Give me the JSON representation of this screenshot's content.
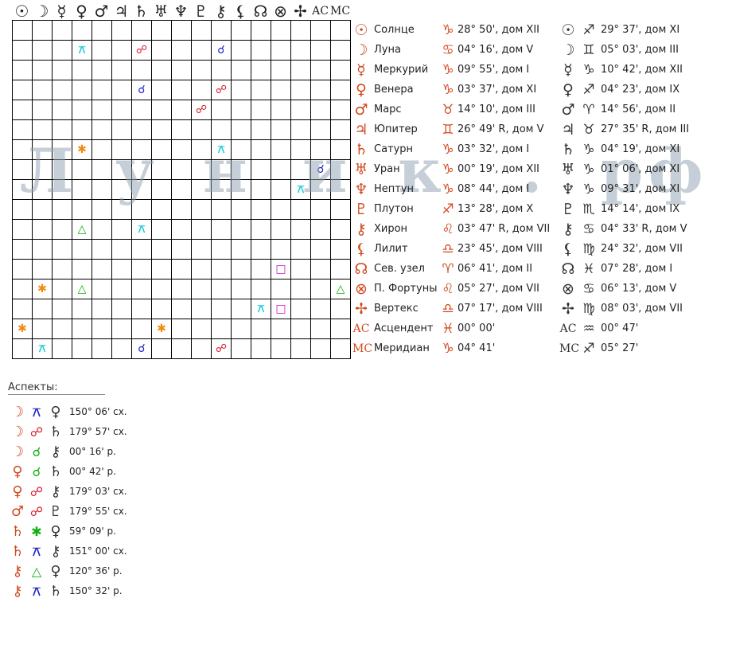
{
  "header_symbols": [
    "☉",
    "☽",
    "☿",
    "♀",
    "♂",
    "♃",
    "♄",
    "♅",
    "♆",
    "♇",
    "⚷",
    "⚸",
    "☊",
    "⊗",
    "✢",
    "AC",
    "MC"
  ],
  "aspect_colors": {
    "blue": "#1a22c8",
    "red": "#d8182a",
    "cyan": "#10c8d8",
    "orange": "#f08a10",
    "green": "#12b012",
    "magenta": "#d010c8"
  },
  "grid_cells": [
    {
      "r": 1,
      "c": 3,
      "s": "⚻",
      "col": "cyan"
    },
    {
      "r": 1,
      "c": 6,
      "s": "☍",
      "col": "red"
    },
    {
      "r": 1,
      "c": 10,
      "s": "☌",
      "col": "blue"
    },
    {
      "r": 3,
      "c": 6,
      "s": "☌",
      "col": "blue"
    },
    {
      "r": 3,
      "c": 10,
      "s": "☍",
      "col": "red"
    },
    {
      "r": 4,
      "c": 9,
      "s": "☍",
      "col": "red"
    },
    {
      "r": 6,
      "c": 3,
      "s": "✱",
      "col": "orange"
    },
    {
      "r": 6,
      "c": 10,
      "s": "⚻",
      "col": "cyan"
    },
    {
      "r": 7,
      "c": 15,
      "s": "☌",
      "col": "blue"
    },
    {
      "r": 8,
      "c": 14,
      "s": "⚻",
      "col": "cyan"
    },
    {
      "r": 10,
      "c": 3,
      "s": "△",
      "col": "green"
    },
    {
      "r": 10,
      "c": 6,
      "s": "⚻",
      "col": "cyan"
    },
    {
      "r": 12,
      "c": 13,
      "s": "□",
      "col": "magenta"
    },
    {
      "r": 13,
      "c": 1,
      "s": "✱",
      "col": "orange"
    },
    {
      "r": 13,
      "c": 3,
      "s": "△",
      "col": "green"
    },
    {
      "r": 13,
      "c": 16,
      "s": "△",
      "col": "green"
    },
    {
      "r": 14,
      "c": 12,
      "s": "⚻",
      "col": "cyan"
    },
    {
      "r": 14,
      "c": 13,
      "s": "□",
      "col": "magenta"
    },
    {
      "r": 15,
      "c": 0,
      "s": "✱",
      "col": "orange"
    },
    {
      "r": 15,
      "c": 7,
      "s": "✱",
      "col": "orange"
    },
    {
      "r": 16,
      "c": 1,
      "s": "⚻",
      "col": "cyan"
    },
    {
      "r": 16,
      "c": 6,
      "s": "☌",
      "col": "blue"
    },
    {
      "r": 16,
      "c": 10,
      "s": "☍",
      "col": "red"
    }
  ],
  "watermark": [
    "Л",
    "у",
    "н",
    "и",
    "к",
    ".",
    "р",
    "ф"
  ],
  "planets": [
    {
      "sym": "☉",
      "name": "Солнце",
      "z1": "♑",
      "v1": "28° 50', дом XII",
      "z2": "♐",
      "v2": "29° 37', дом XI"
    },
    {
      "sym": "☽",
      "name": "Луна",
      "z1": "♋",
      "v1": "04° 16', дом V",
      "z2": "♊",
      "v2": "05° 03', дом III"
    },
    {
      "sym": "☿",
      "name": "Меркурий",
      "z1": "♑",
      "v1": "09° 55', дом I",
      "z2": "♑",
      "v2": "10° 42', дом XII"
    },
    {
      "sym": "♀",
      "name": "Венера",
      "z1": "♑",
      "v1": "03° 37', дом XI",
      "z2": "♐",
      "v2": "04° 23', дом IX"
    },
    {
      "sym": "♂",
      "name": "Марс",
      "z1": "♉",
      "v1": "14° 10', дом III",
      "z2": "♈",
      "v2": "14° 56', дом II"
    },
    {
      "sym": "♃",
      "name": "Юпитер",
      "z1": "♊",
      "v1": "26° 49' R, дом V",
      "z2": "♉",
      "v2": "27° 35' R, дом III"
    },
    {
      "sym": "♄",
      "name": "Сатурн",
      "z1": "♑",
      "v1": "03° 32', дом I",
      "z2": "♑",
      "v2": "04° 19', дом XI"
    },
    {
      "sym": "♅",
      "name": "Уран",
      "z1": "♑",
      "v1": "00° 19', дом XII",
      "z2": "♑",
      "v2": "01° 06', дом XI"
    },
    {
      "sym": "♆",
      "name": "Нептун",
      "z1": "♑",
      "v1": "08° 44', дом I",
      "z2": "♑",
      "v2": "09° 31', дом XI"
    },
    {
      "sym": "♇",
      "name": "Плутон",
      "z1": "♐",
      "v1": "13° 28', дом X",
      "z2": "♏",
      "v2": "14° 14', дом IX"
    },
    {
      "sym": "⚷",
      "name": "Хирон",
      "z1": "♌",
      "v1": "03° 47' R, дом VII",
      "z2": "♋",
      "v2": "04° 33' R, дом V"
    },
    {
      "sym": "⚸",
      "name": "Лилит",
      "z1": "♎",
      "v1": "23° 45', дом VIII",
      "z2": "♍",
      "v2": "24° 32', дом VII"
    },
    {
      "sym": "☊",
      "name": "Сев. узел",
      "z1": "♈",
      "v1": "06° 41', дом II",
      "z2": "♓",
      "v2": "07° 28', дом I"
    },
    {
      "sym": "⊗",
      "name": "П. Фортуны",
      "z1": "♌",
      "v1": "05° 27', дом VII",
      "z2": "♋",
      "v2": "06° 13', дом V"
    },
    {
      "sym": "✢",
      "name": "Вертекс",
      "z1": "♎",
      "v1": "07° 17', дом VIII",
      "z2": "♍",
      "v2": "08° 03', дом VII"
    },
    {
      "sym": "AC",
      "name": "Асцендент",
      "z1": "♓",
      "v1": "00° 00'",
      "z2": "♒",
      "v2": "00° 47'"
    },
    {
      "sym": "MC",
      "name": "Меридиан",
      "z1": "♑",
      "v1": "04° 41'",
      "z2": "♐",
      "v2": "05° 27'"
    }
  ],
  "aspects_title": "Аспекты:",
  "aspects": [
    {
      "p1": "☽",
      "asp": "⚻",
      "col": "blue",
      "p2": "♀",
      "val": "150° 06' сх."
    },
    {
      "p1": "☽",
      "asp": "☍",
      "col": "red",
      "p2": "♄",
      "val": "179° 57' сх."
    },
    {
      "p1": "☽",
      "asp": "☌",
      "col": "green",
      "p2": "⚷",
      "val": "00° 16' р."
    },
    {
      "p1": "♀",
      "asp": "☌",
      "col": "green",
      "p2": "♄",
      "val": "00° 42' р."
    },
    {
      "p1": "♀",
      "asp": "☍",
      "col": "red",
      "p2": "⚷",
      "val": "179° 03' сх."
    },
    {
      "p1": "♂",
      "asp": "☍",
      "col": "red",
      "p2": "♇",
      "val": "179° 55' сх."
    },
    {
      "p1": "♄",
      "asp": "✱",
      "col": "green",
      "p2": "♀",
      "val": "59° 09' р."
    },
    {
      "p1": "♄",
      "asp": "⚻",
      "col": "blue",
      "p2": "⚷",
      "val": "151° 00' сх."
    },
    {
      "p1": "⚷",
      "asp": "△",
      "col": "green",
      "p2": "♀",
      "val": "120° 36' р."
    },
    {
      "p1": "⚷",
      "asp": "⚻",
      "col": "blue",
      "p2": "♄",
      "val": "150° 32' р."
    }
  ]
}
